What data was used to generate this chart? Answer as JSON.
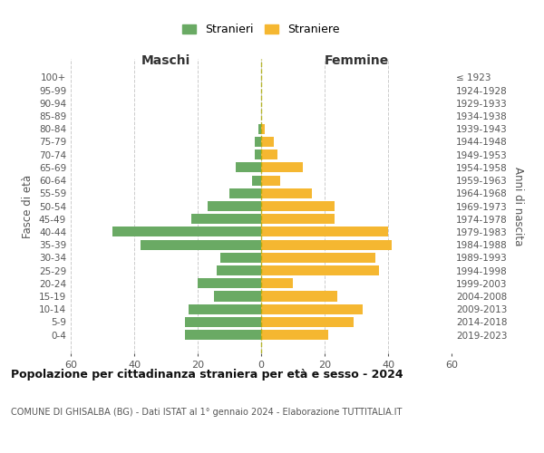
{
  "age_groups": [
    "0-4",
    "5-9",
    "10-14",
    "15-19",
    "20-24",
    "25-29",
    "30-34",
    "35-39",
    "40-44",
    "45-49",
    "50-54",
    "55-59",
    "60-64",
    "65-69",
    "70-74",
    "75-79",
    "80-84",
    "85-89",
    "90-94",
    "95-99",
    "100+"
  ],
  "birth_years": [
    "2019-2023",
    "2014-2018",
    "2009-2013",
    "2004-2008",
    "1999-2003",
    "1994-1998",
    "1989-1993",
    "1984-1988",
    "1979-1983",
    "1974-1978",
    "1969-1973",
    "1964-1968",
    "1959-1963",
    "1954-1958",
    "1949-1953",
    "1944-1948",
    "1939-1943",
    "1934-1938",
    "1929-1933",
    "1924-1928",
    "≤ 1923"
  ],
  "maschi": [
    24,
    24,
    23,
    15,
    20,
    14,
    13,
    38,
    47,
    22,
    17,
    10,
    3,
    8,
    2,
    2,
    1,
    0,
    0,
    0,
    0
  ],
  "femmine": [
    21,
    29,
    32,
    24,
    10,
    37,
    36,
    41,
    40,
    23,
    23,
    16,
    6,
    13,
    5,
    4,
    1,
    0,
    0,
    0,
    0
  ],
  "male_color": "#6aaa64",
  "female_color": "#f5b731",
  "grid_color": "#cccccc",
  "axis_label_color": "#555555",
  "title": "Popolazione per cittadinanza straniera per età e sesso - 2024",
  "subtitle": "COMUNE DI GHISALBA (BG) - Dati ISTAT al 1° gennaio 2024 - Elaborazione TUTTITALIA.IT",
  "xlabel_left": "Maschi",
  "xlabel_right": "Femmine",
  "ylabel_left": "Fasce di età",
  "ylabel_right": "Anni di nascita",
  "legend_male": "Stranieri",
  "legend_female": "Straniere",
  "xlim": 60,
  "background_color": "#ffffff"
}
